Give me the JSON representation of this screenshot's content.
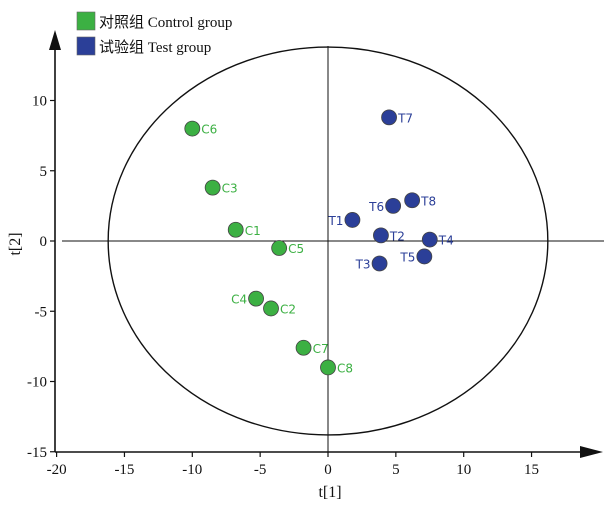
{
  "chart_data": {
    "type": "scatter",
    "title": "",
    "xlabel": "t[1]",
    "ylabel": "t[2]",
    "xlim": [
      -20,
      20
    ],
    "ylim": [
      -15,
      15
    ],
    "xticks": [
      -20,
      -15,
      -10,
      -5,
      0,
      5,
      10,
      15
    ],
    "yticks": [
      -15,
      -10,
      -5,
      0,
      5,
      10
    ],
    "grid": false,
    "ellipse": {
      "cx": 0,
      "cy": 0,
      "rx": 16.2,
      "ry": 13.8
    },
    "legend_position": "top-left",
    "series": [
      {
        "name": "对照组 Control group",
        "color": "#3cb043",
        "points": [
          {
            "label": "C1",
            "x": -6.8,
            "y": 0.8
          },
          {
            "label": "C2",
            "x": -4.2,
            "y": -4.8
          },
          {
            "label": "C3",
            "x": -8.5,
            "y": 3.8
          },
          {
            "label": "C4",
            "x": -5.3,
            "y": -4.1
          },
          {
            "label": "C5",
            "x": -3.6,
            "y": -0.5
          },
          {
            "label": "C6",
            "x": -10.0,
            "y": 8.0
          },
          {
            "label": "C7",
            "x": -1.8,
            "y": -7.6
          },
          {
            "label": "C8",
            "x": 0.0,
            "y": -9.0
          }
        ]
      },
      {
        "name": "试验组 Test group",
        "color": "#2b3f98",
        "points": [
          {
            "label": "T1",
            "x": 1.8,
            "y": 1.5
          },
          {
            "label": "T2",
            "x": 3.9,
            "y": 0.4
          },
          {
            "label": "T3",
            "x": 3.8,
            "y": -1.6
          },
          {
            "label": "T4",
            "x": 7.5,
            "y": 0.1
          },
          {
            "label": "T5",
            "x": 7.1,
            "y": -1.1
          },
          {
            "label": "T6",
            "x": 4.8,
            "y": 2.5
          },
          {
            "label": "T7",
            "x": 4.5,
            "y": 8.8
          },
          {
            "label": "T8",
            "x": 6.2,
            "y": 2.9
          }
        ]
      }
    ]
  }
}
